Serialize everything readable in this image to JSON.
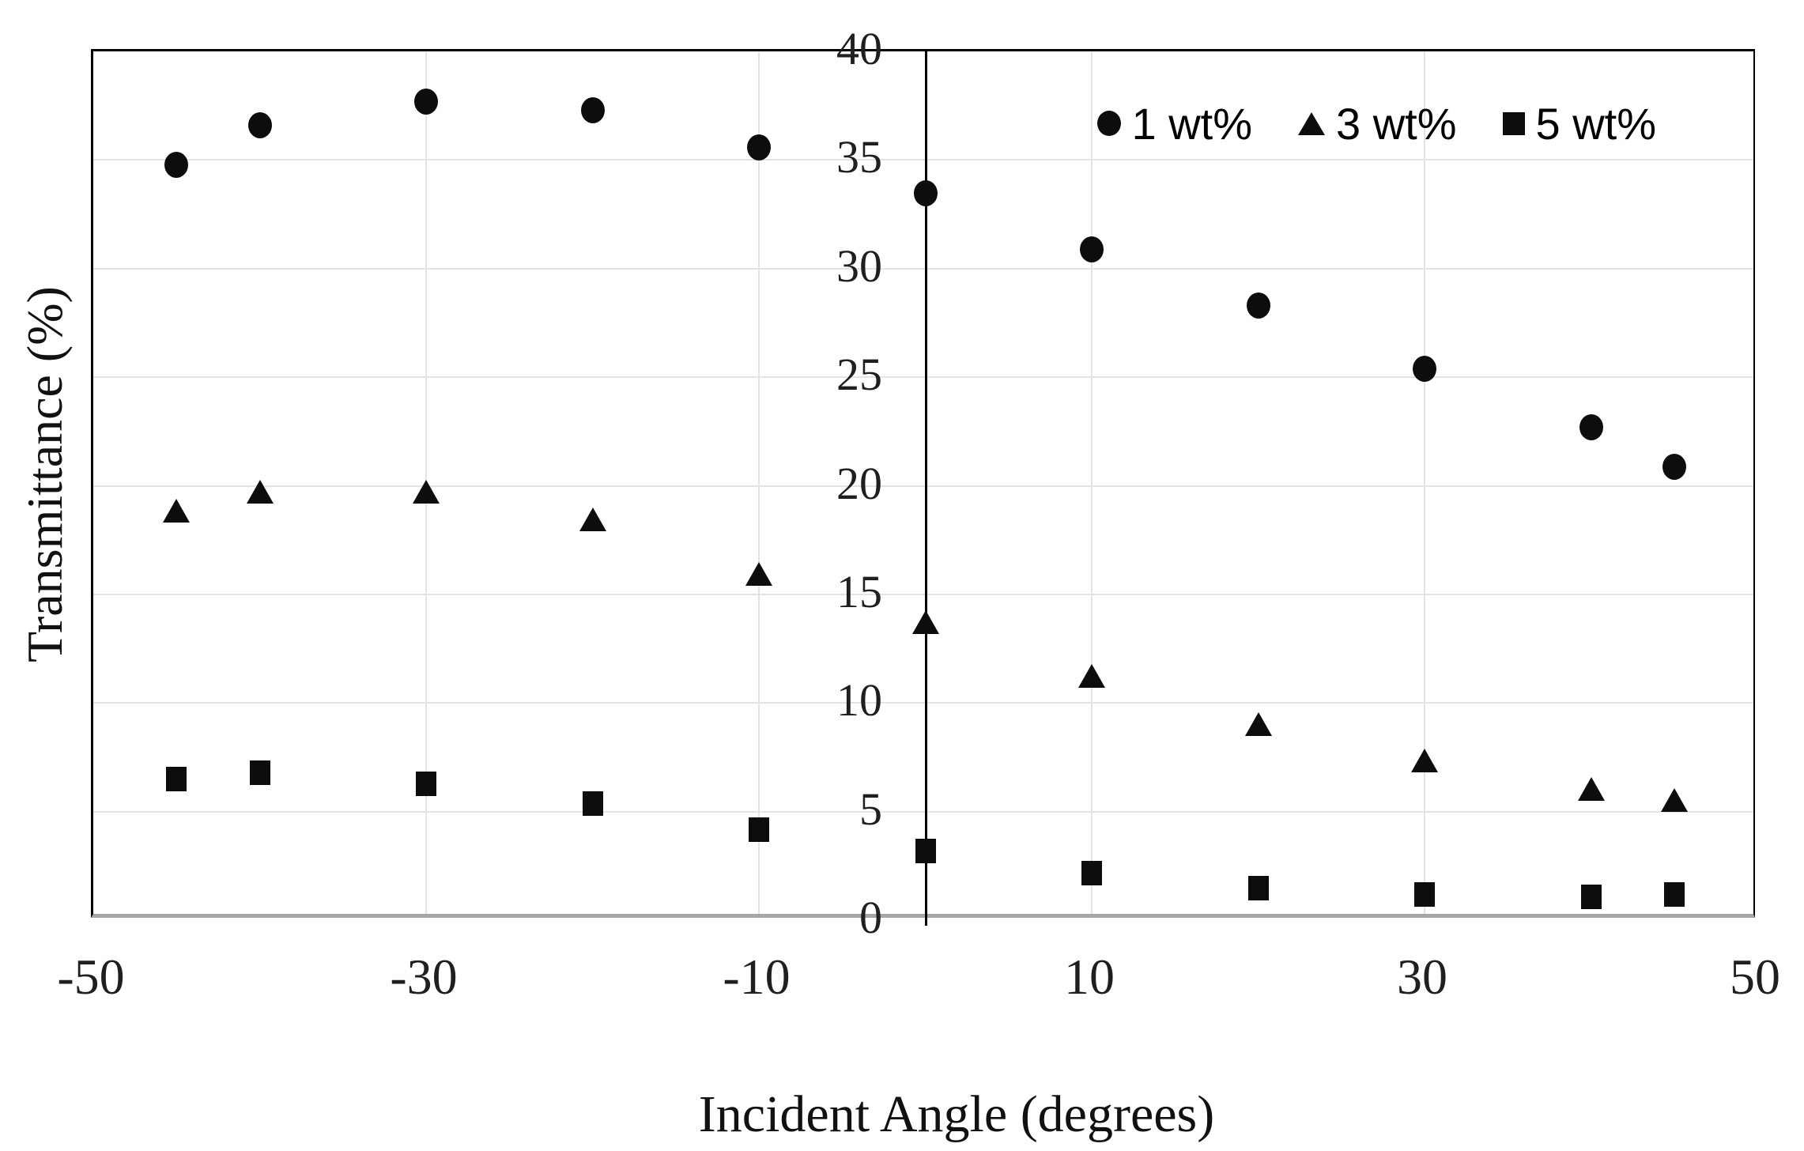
{
  "figure": {
    "background_color": "#ffffff",
    "axis_border_color": "#000000",
    "baseline_color": "#a6a6a6",
    "gridline_color": "#e3e3e3",
    "marker_color": "#0d0d0d",
    "text_color": "#1f1f1f"
  },
  "chart_data": {
    "type": "scatter",
    "title": "",
    "xlabel": "Incident Angle (degrees)",
    "ylabel": "Transmittance (%)",
    "xlim": [
      -50,
      50
    ],
    "ylim": [
      0,
      40
    ],
    "x_tick_labels": [
      "-50",
      "-30",
      "-10",
      "10",
      "30",
      "50"
    ],
    "x_tick_values": [
      -50,
      -30,
      -10,
      10,
      30,
      50
    ],
    "y_tick_labels": [
      "0",
      "5",
      "10",
      "15",
      "20",
      "25",
      "30",
      "35",
      "40"
    ],
    "y_tick_values": [
      0,
      5,
      10,
      15,
      20,
      25,
      30,
      35,
      40
    ],
    "x_gridline_values": [
      -30,
      -10,
      10,
      30
    ],
    "y_gridline_values": [
      5,
      10,
      15,
      20,
      25,
      30,
      35
    ],
    "grid": "on",
    "y_axis_crosses_at_x": 0,
    "legend_position": "top-right-inside",
    "x": [
      -45,
      -40,
      -30,
      -20,
      -10,
      0,
      10,
      20,
      30,
      40,
      45
    ],
    "series": [
      {
        "name": "1 wt%",
        "marker": "circle",
        "values": [
          34.8,
          36.6,
          37.7,
          37.3,
          35.6,
          33.5,
          30.9,
          28.3,
          25.4,
          22.7,
          20.9
        ]
      },
      {
        "name": "3 wt%",
        "marker": "triangle",
        "values": [
          18.8,
          19.7,
          19.7,
          18.4,
          15.9,
          13.7,
          11.2,
          9.0,
          7.3,
          6.0,
          5.5
        ]
      },
      {
        "name": "5 wt%",
        "marker": "square",
        "values": [
          6.5,
          6.8,
          6.3,
          5.4,
          4.2,
          3.2,
          2.2,
          1.5,
          1.2,
          1.1,
          1.2
        ]
      }
    ]
  },
  "legend": {
    "items": [
      {
        "marker": "circle",
        "label": "1 wt%"
      },
      {
        "marker": "triangle",
        "label": "3 wt%"
      },
      {
        "marker": "square",
        "label": "5 wt%"
      }
    ]
  }
}
